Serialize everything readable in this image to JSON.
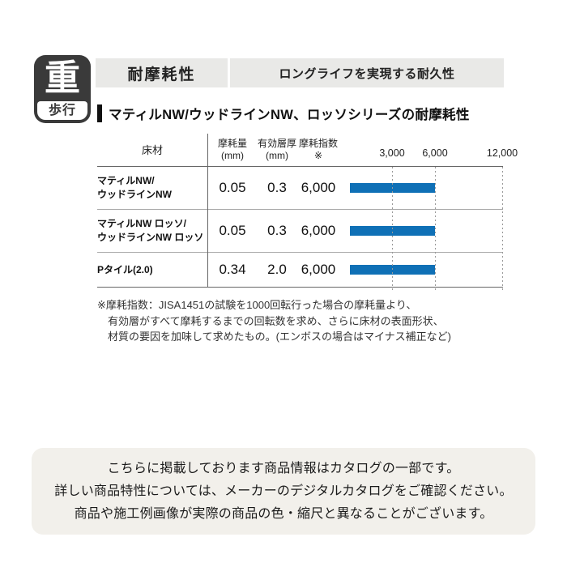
{
  "badge": {
    "top_label": "重",
    "bottom_label": "歩行"
  },
  "header_bar": {
    "left_label": "耐摩耗性",
    "right_label": "ロングライフを実現する耐久性"
  },
  "section": {
    "title": "マティルNW/ウッドラインNW、ロッソシリーズの耐摩耗性"
  },
  "table": {
    "floor_header": "床材",
    "columns": [
      {
        "line1": "摩耗量",
        "line2": "(mm)"
      },
      {
        "line1": "有効層厚",
        "line2": "(mm)"
      },
      {
        "line1": "摩耗指数",
        "line2": "※"
      }
    ],
    "ticks": [
      "3,000",
      "6,000",
      "12,000"
    ],
    "rows": [
      {
        "name_line1": "マティルNW/",
        "name_line2": "ウッドラインNW",
        "wear": "0.05",
        "layer": "0.3",
        "index": "6,000"
      },
      {
        "name_line1": "マティルNW ロッソ/",
        "name_line2": "ウッドラインNW ロッソ",
        "wear": "0.05",
        "layer": "0.3",
        "index": "6,000"
      },
      {
        "name_line1": "Pタイル(2.0)",
        "name_line2": "",
        "wear": "0.34",
        "layer": "2.0",
        "index": "6,000"
      }
    ]
  },
  "chart_data": {
    "type": "bar",
    "orientation": "horizontal",
    "title": "マティルNW/ウッドラインNW、ロッソシリーズの耐摩耗性",
    "categories": [
      "マティルNW/ウッドラインNW",
      "マティルNW ロッソ/ウッドラインNW ロッソ",
      "Pタイル(2.0)"
    ],
    "series": [
      {
        "name": "摩耗指数※",
        "values": [
          6000,
          6000,
          6000
        ]
      }
    ],
    "columns": {
      "摩耗量(mm)": [
        0.05,
        0.05,
        0.34
      ],
      "有効層厚(mm)": [
        0.3,
        0.3,
        2.0
      ],
      "摩耗指数※": [
        6000,
        6000,
        6000
      ]
    },
    "x_ticks": [
      3000,
      6000,
      12000
    ],
    "xlim": [
      0,
      12000
    ],
    "grid": "dashed vertical gridlines at ticks",
    "legend": "none",
    "bar_color": "#0f70b6"
  },
  "footnote": {
    "line1": "※摩耗指数：JISA1451の試験を1000回転行った場合の摩耗量より、",
    "line2": "有効層がすべて摩耗するまでの回転数を求め、さらに床材の表面形状、",
    "line3": "材質の要因を加味して求めたもの。(エンボスの場合はマイナス補正など)"
  },
  "notice": {
    "line1": "こちらに掲載しております商品情報はカタログの一部です。",
    "line2": "詳しい商品特性については、メーカーのデジタルカタログをご確認ください。",
    "line3": "商品や施工例画像が実際の商品の色・縮尺と異なることがございます。"
  },
  "colors": {
    "bar_blue": "#0f70b6",
    "header_bar_bg": "#e9e9e7",
    "notice_bg": "#f2f0eb",
    "badge_bg": "#3a3a3a"
  }
}
